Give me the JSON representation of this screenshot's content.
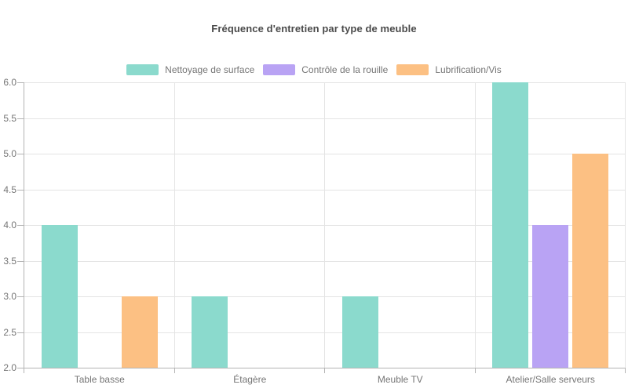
{
  "chart_data": {
    "type": "bar",
    "title": "Fréquence d'entretien par type de meuble",
    "categories": [
      "Table basse",
      "Étagère",
      "Meuble TV",
      "Atelier/Salle serveurs"
    ],
    "series": [
      {
        "name": "Nettoyage de surface",
        "color": "#8BDACD",
        "values": [
          4,
          3,
          3,
          6
        ]
      },
      {
        "name": "Contrôle de la rouille",
        "color": "#B9A3F4",
        "values": [
          null,
          null,
          null,
          4
        ]
      },
      {
        "name": "Lubrification/Vis",
        "color": "#FCC083",
        "values": [
          3,
          null,
          null,
          5
        ]
      }
    ],
    "xlabel": "",
    "ylabel": "",
    "ylim": [
      2.0,
      6.0
    ],
    "ytick_step": 0.5,
    "ytick_labels": [
      "2.0",
      "2.5",
      "3.0",
      "3.5",
      "4.0",
      "4.5",
      "5.0",
      "5.5",
      "6.0"
    ],
    "grid": true,
    "legend_position": "top"
  },
  "colors": {
    "background": "#ffffff",
    "title_text": "#4a4a4a",
    "axis_text": "#757575",
    "gridline": "#e4e4e4",
    "axis_line": "#b4b4b4"
  }
}
